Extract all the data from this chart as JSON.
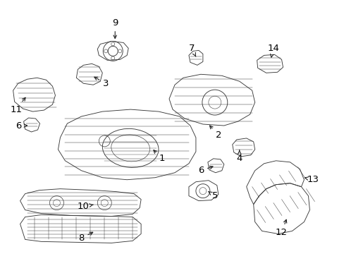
{
  "background_color": "#ffffff",
  "figsize": [
    4.89,
    3.6
  ],
  "dpi": 100,
  "image_b64": ""
}
